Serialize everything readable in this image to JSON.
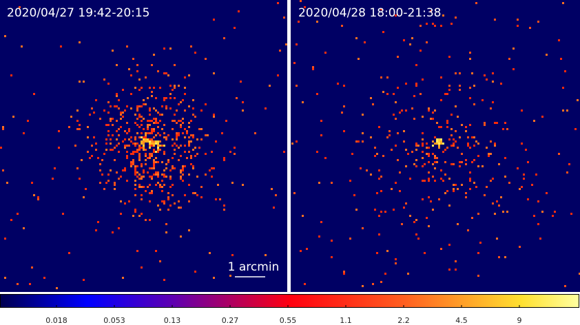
{
  "panels": [
    {
      "label": "2020/04/27  19:42-20:15"
    },
    {
      "label": "2020/04/28  18:00-21:38"
    }
  ],
  "scale_bar": {
    "label": "1 arcmin"
  },
  "colorbar": {
    "ticks": [
      "0.018",
      "0.053",
      "0.13",
      "0.27",
      "0.55",
      "1.1",
      "2.2",
      "4.5",
      "9"
    ]
  }
}
